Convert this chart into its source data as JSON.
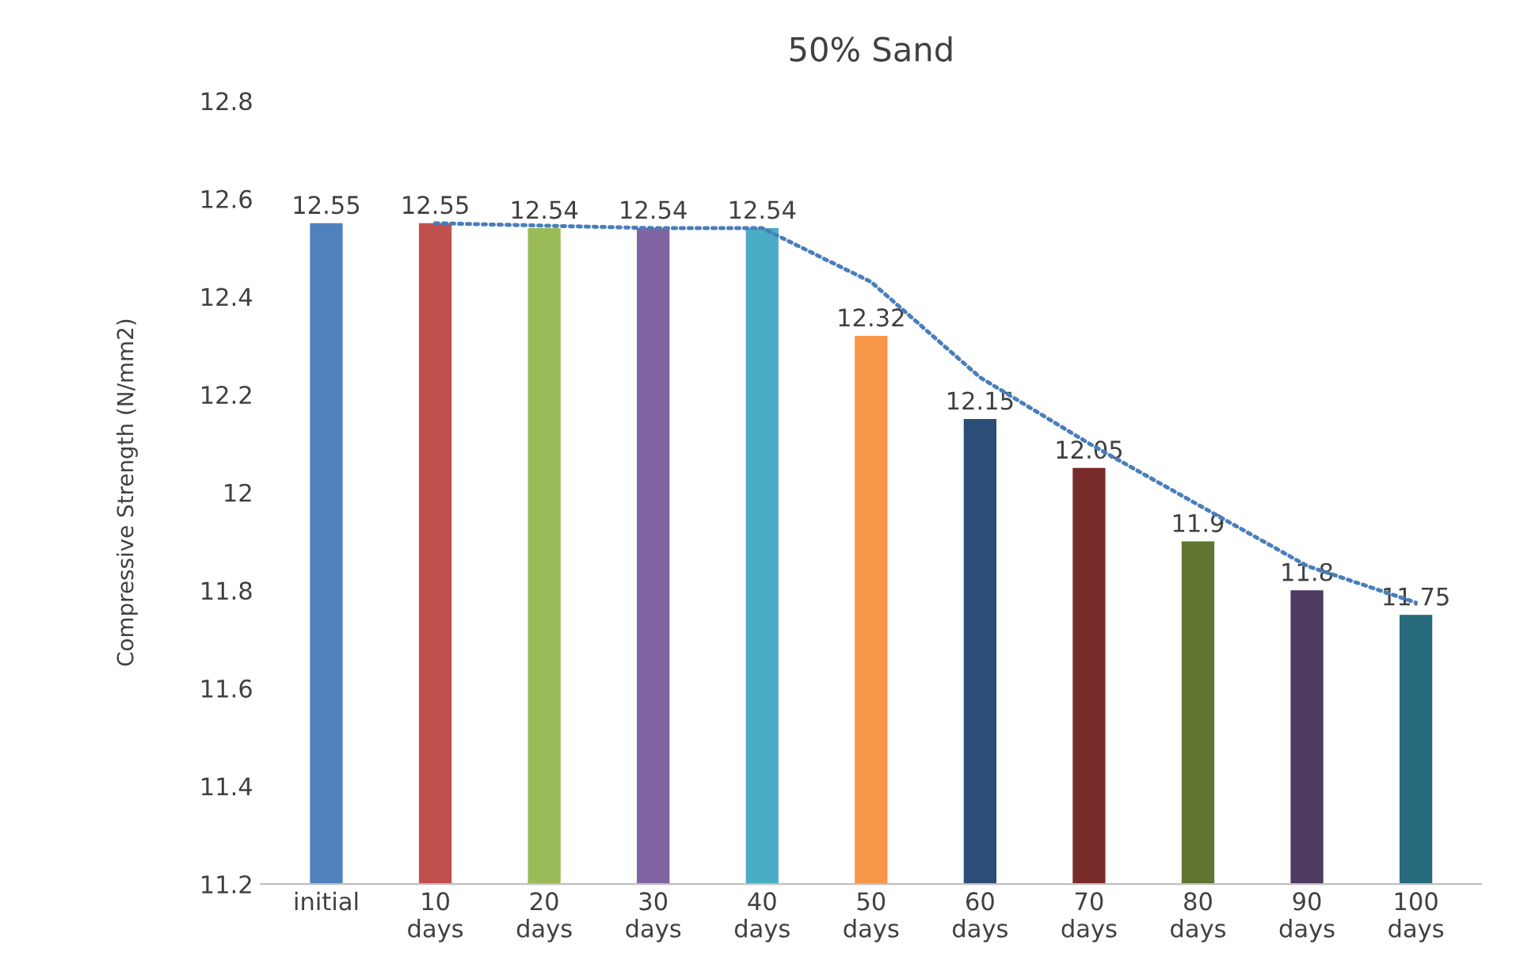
{
  "chart_data": {
    "type": "bar",
    "title": "50% Sand",
    "ylabel": "Compressive Strength (N/mm2)",
    "categories": [
      "initial",
      "10\ndays",
      "20\ndays",
      "30\ndays",
      "40\ndays",
      "50\ndays",
      "60\ndays",
      "70\ndays",
      "80\ndays",
      "90\ndays",
      "100\ndays"
    ],
    "series": [
      {
        "values": [
          12.55,
          12.55,
          12.54,
          12.54,
          12.54,
          12.32,
          12.15,
          12.05,
          11.9,
          11.8,
          11.75
        ],
        "colors": [
          "#4f81bd",
          "#c0504d",
          "#9bbb59",
          "#8064a2",
          "#4bacc6",
          "#f79646",
          "#2c4d75",
          "#772c2a",
          "#5f7530",
          "#4d3b62",
          "#276a7c"
        ],
        "data_labels": true
      },
      {
        "type": "line",
        "color": "#4a7ebb",
        "line_style": "dotted",
        "marker": "none",
        "values": [
          null,
          12.55,
          12.545,
          12.54,
          12.54,
          12.43,
          12.235,
          12.1,
          11.975,
          11.85,
          11.775
        ]
      }
    ],
    "ylim": [
      11.2,
      12.8
    ],
    "yticks": [
      11.2,
      11.4,
      11.6,
      11.8,
      {
        "value": 12,
        "label": "12"
      },
      12.2,
      12.4,
      12.6,
      12.8
    ],
    "grid": false
  }
}
